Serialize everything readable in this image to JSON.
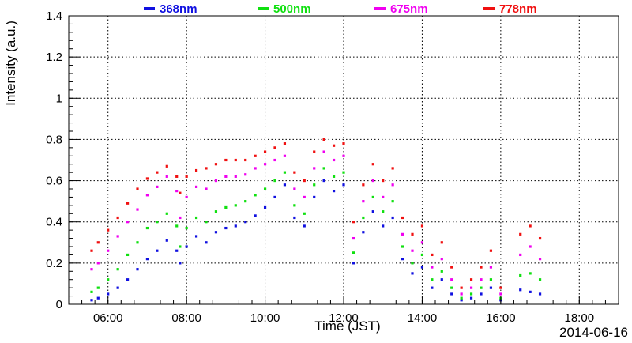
{
  "chart_data": {
    "type": "scatter",
    "title": "",
    "xlabel": "Time (JST)",
    "ylabel": "Intensity (a.u.)",
    "date_label": "2014-06-16",
    "xlim": [
      "05:00",
      "19:00"
    ],
    "ylim": [
      0,
      1.4
    ],
    "grid": true,
    "legend_position": "top",
    "x_ticks": [
      "06:00",
      "08:00",
      "10:00",
      "12:00",
      "14:00",
      "16:00",
      "18:00"
    ],
    "y_ticks": [
      "0",
      "0.2",
      "0.4",
      "0.6",
      "0.8",
      "1",
      "1.2",
      "1.4"
    ],
    "series": [
      {
        "name": "368nm",
        "color": "#1010e0",
        "points": [
          [
            "05:35",
            0.02
          ],
          [
            "05:45",
            0.03
          ],
          [
            "06:00",
            0.05
          ],
          [
            "06:15",
            0.08
          ],
          [
            "06:30",
            0.12
          ],
          [
            "06:45",
            0.17
          ],
          [
            "07:00",
            0.22
          ],
          [
            "07:15",
            0.26
          ],
          [
            "07:30",
            0.31
          ],
          [
            "07:45",
            0.26
          ],
          [
            "07:50",
            0.2
          ],
          [
            "08:00",
            0.28
          ],
          [
            "08:15",
            0.33
          ],
          [
            "08:30",
            0.3
          ],
          [
            "08:45",
            0.35
          ],
          [
            "09:00",
            0.37
          ],
          [
            "09:15",
            0.38
          ],
          [
            "09:30",
            0.4
          ],
          [
            "09:45",
            0.43
          ],
          [
            "10:00",
            0.47
          ],
          [
            "10:15",
            0.52
          ],
          [
            "10:30",
            0.58
          ],
          [
            "10:45",
            0.42
          ],
          [
            "11:00",
            0.38
          ],
          [
            "11:15",
            0.52
          ],
          [
            "11:30",
            0.6
          ],
          [
            "11:45",
            0.55
          ],
          [
            "12:00",
            0.58
          ],
          [
            "12:15",
            0.2
          ],
          [
            "12:30",
            0.35
          ],
          [
            "12:45",
            0.45
          ],
          [
            "13:00",
            0.38
          ],
          [
            "13:15",
            0.42
          ],
          [
            "13:30",
            0.22
          ],
          [
            "13:45",
            0.15
          ],
          [
            "14:00",
            0.18
          ],
          [
            "14:15",
            0.08
          ],
          [
            "14:30",
            0.12
          ],
          [
            "14:45",
            0.05
          ],
          [
            "15:00",
            0.02
          ],
          [
            "15:15",
            0.03
          ],
          [
            "15:30",
            0.05
          ],
          [
            "15:45",
            0.08
          ],
          [
            "16:00",
            0.02
          ],
          [
            "16:30",
            0.07
          ],
          [
            "16:45",
            0.06
          ],
          [
            "17:00",
            0.05
          ]
        ]
      },
      {
        "name": "500nm",
        "color": "#10e010",
        "points": [
          [
            "05:35",
            0.06
          ],
          [
            "05:45",
            0.08
          ],
          [
            "06:00",
            0.12
          ],
          [
            "06:15",
            0.17
          ],
          [
            "06:30",
            0.24
          ],
          [
            "06:45",
            0.3
          ],
          [
            "07:00",
            0.37
          ],
          [
            "07:15",
            0.4
          ],
          [
            "07:30",
            0.44
          ],
          [
            "07:45",
            0.38
          ],
          [
            "07:50",
            0.28
          ],
          [
            "08:00",
            0.37
          ],
          [
            "08:15",
            0.42
          ],
          [
            "08:30",
            0.4
          ],
          [
            "08:45",
            0.45
          ],
          [
            "09:00",
            0.47
          ],
          [
            "09:15",
            0.48
          ],
          [
            "09:30",
            0.5
          ],
          [
            "09:45",
            0.53
          ],
          [
            "10:00",
            0.56
          ],
          [
            "10:15",
            0.6
          ],
          [
            "10:30",
            0.64
          ],
          [
            "10:45",
            0.48
          ],
          [
            "11:00",
            0.44
          ],
          [
            "11:15",
            0.58
          ],
          [
            "11:30",
            0.66
          ],
          [
            "11:45",
            0.62
          ],
          [
            "12:00",
            0.64
          ],
          [
            "12:15",
            0.25
          ],
          [
            "12:30",
            0.42
          ],
          [
            "12:45",
            0.52
          ],
          [
            "13:00",
            0.45
          ],
          [
            "13:15",
            0.5
          ],
          [
            "13:30",
            0.28
          ],
          [
            "13:45",
            0.2
          ],
          [
            "14:00",
            0.24
          ],
          [
            "14:15",
            0.12
          ],
          [
            "14:30",
            0.16
          ],
          [
            "14:45",
            0.08
          ],
          [
            "15:00",
            0.03
          ],
          [
            "15:15",
            0.05
          ],
          [
            "15:30",
            0.08
          ],
          [
            "15:45",
            0.12
          ],
          [
            "16:00",
            0.03
          ],
          [
            "16:30",
            0.14
          ],
          [
            "16:45",
            0.15
          ],
          [
            "17:00",
            0.12
          ]
        ]
      },
      {
        "name": "675nm",
        "color": "#f000f0",
        "points": [
          [
            "05:35",
            0.17
          ],
          [
            "05:45",
            0.2
          ],
          [
            "06:00",
            0.26
          ],
          [
            "06:15",
            0.33
          ],
          [
            "06:30",
            0.4
          ],
          [
            "06:45",
            0.46
          ],
          [
            "07:00",
            0.53
          ],
          [
            "07:15",
            0.57
          ],
          [
            "07:30",
            0.62
          ],
          [
            "07:45",
            0.55
          ],
          [
            "07:50",
            0.42
          ],
          [
            "08:00",
            0.52
          ],
          [
            "08:15",
            0.57
          ],
          [
            "08:30",
            0.56
          ],
          [
            "08:45",
            0.6
          ],
          [
            "09:00",
            0.62
          ],
          [
            "09:15",
            0.62
          ],
          [
            "09:30",
            0.63
          ],
          [
            "09:45",
            0.66
          ],
          [
            "10:00",
            0.68
          ],
          [
            "10:15",
            0.7
          ],
          [
            "10:30",
            0.72
          ],
          [
            "10:45",
            0.56
          ],
          [
            "11:00",
            0.52
          ],
          [
            "11:15",
            0.66
          ],
          [
            "11:30",
            0.74
          ],
          [
            "11:45",
            0.7
          ],
          [
            "12:00",
            0.72
          ],
          [
            "12:15",
            0.32
          ],
          [
            "12:30",
            0.5
          ],
          [
            "12:45",
            0.6
          ],
          [
            "13:00",
            0.52
          ],
          [
            "13:15",
            0.58
          ],
          [
            "13:30",
            0.34
          ],
          [
            "13:45",
            0.26
          ],
          [
            "14:00",
            0.3
          ],
          [
            "14:15",
            0.18
          ],
          [
            "14:30",
            0.22
          ],
          [
            "14:45",
            0.12
          ],
          [
            "15:00",
            0.05
          ],
          [
            "15:15",
            0.08
          ],
          [
            "15:30",
            0.12
          ],
          [
            "15:45",
            0.18
          ],
          [
            "16:00",
            0.05
          ],
          [
            "16:30",
            0.24
          ],
          [
            "16:45",
            0.28
          ],
          [
            "17:00",
            0.22
          ]
        ]
      },
      {
        "name": "778nm",
        "color": "#f01010",
        "points": [
          [
            "05:35",
            0.26
          ],
          [
            "05:45",
            0.3
          ],
          [
            "06:00",
            0.36
          ],
          [
            "06:15",
            0.42
          ],
          [
            "06:30",
            0.49
          ],
          [
            "06:45",
            0.56
          ],
          [
            "07:00",
            0.61
          ],
          [
            "07:15",
            0.64
          ],
          [
            "07:30",
            0.67
          ],
          [
            "07:45",
            0.62
          ],
          [
            "07:50",
            0.54
          ],
          [
            "08:00",
            0.62
          ],
          [
            "08:15",
            0.65
          ],
          [
            "08:30",
            0.66
          ],
          [
            "08:45",
            0.68
          ],
          [
            "09:00",
            0.7
          ],
          [
            "09:15",
            0.7
          ],
          [
            "09:30",
            0.7
          ],
          [
            "09:45",
            0.72
          ],
          [
            "10:00",
            0.74
          ],
          [
            "10:15",
            0.76
          ],
          [
            "10:30",
            0.78
          ],
          [
            "10:45",
            0.64
          ],
          [
            "11:00",
            0.6
          ],
          [
            "11:15",
            0.74
          ],
          [
            "11:30",
            0.8
          ],
          [
            "11:45",
            0.77
          ],
          [
            "12:00",
            0.78
          ],
          [
            "12:15",
            0.4
          ],
          [
            "12:30",
            0.58
          ],
          [
            "12:45",
            0.68
          ],
          [
            "13:00",
            0.6
          ],
          [
            "13:15",
            0.66
          ],
          [
            "13:30",
            0.42
          ],
          [
            "13:45",
            0.34
          ],
          [
            "14:00",
            0.38
          ],
          [
            "14:15",
            0.24
          ],
          [
            "14:30",
            0.3
          ],
          [
            "14:45",
            0.18
          ],
          [
            "15:00",
            0.08
          ],
          [
            "15:15",
            0.12
          ],
          [
            "15:30",
            0.18
          ],
          [
            "15:45",
            0.26
          ],
          [
            "16:00",
            0.08
          ],
          [
            "16:30",
            0.34
          ],
          [
            "16:45",
            0.38
          ],
          [
            "17:00",
            0.32
          ]
        ]
      }
    ]
  }
}
